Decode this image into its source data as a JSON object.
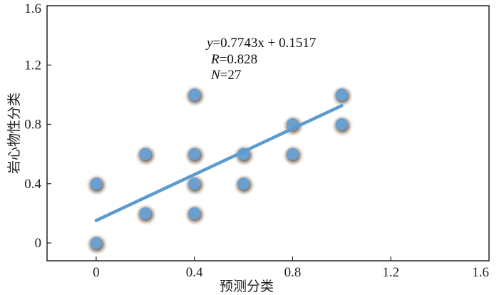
{
  "chart_data": {
    "type": "scatter",
    "title": "",
    "xlabel": "预测分类",
    "ylabel": "岩心物性分类",
    "xlim": [
      -0.2,
      1.6
    ],
    "ylim": [
      -0.12,
      1.6
    ],
    "xticks": [
      0,
      0.4,
      0.8,
      1.2,
      1.6
    ],
    "yticks": [
      0,
      0.4,
      0.8,
      1.2,
      1.6
    ],
    "xtick_labels": [
      "0",
      "0.4",
      "0.8",
      "1.2",
      "1.6"
    ],
    "ytick_labels": [
      "0",
      "0.4",
      "0.8",
      "1.2",
      "1.6"
    ],
    "grid": false,
    "point_color": "#6a9fd0",
    "line_color": "#5b9bd0",
    "points": [
      {
        "x": 0,
        "y": 0
      },
      {
        "x": 0,
        "y": 0.4
      },
      {
        "x": 0.2,
        "y": 0.2
      },
      {
        "x": 0.2,
        "y": 0.6
      },
      {
        "x": 0.4,
        "y": 0.2
      },
      {
        "x": 0.4,
        "y": 0.4
      },
      {
        "x": 0.4,
        "y": 0.6
      },
      {
        "x": 0.4,
        "y": 1.0
      },
      {
        "x": 0.6,
        "y": 0.4
      },
      {
        "x": 0.6,
        "y": 0.6
      },
      {
        "x": 0.8,
        "y": 0.6
      },
      {
        "x": 0.8,
        "y": 0.8
      },
      {
        "x": 1.0,
        "y": 0.8
      },
      {
        "x": 1.0,
        "y": 1.0
      }
    ],
    "regression": {
      "slope": 0.7743,
      "intercept": 0.1517,
      "x_range": [
        0,
        1.0
      ]
    },
    "annotation": {
      "line1_var": "y",
      "line1_rest": "=0.7743x + 0.1517",
      "line2_var": "R",
      "line2_rest": "=0.828",
      "line3_var": "N",
      "line3_rest": "=27"
    }
  }
}
